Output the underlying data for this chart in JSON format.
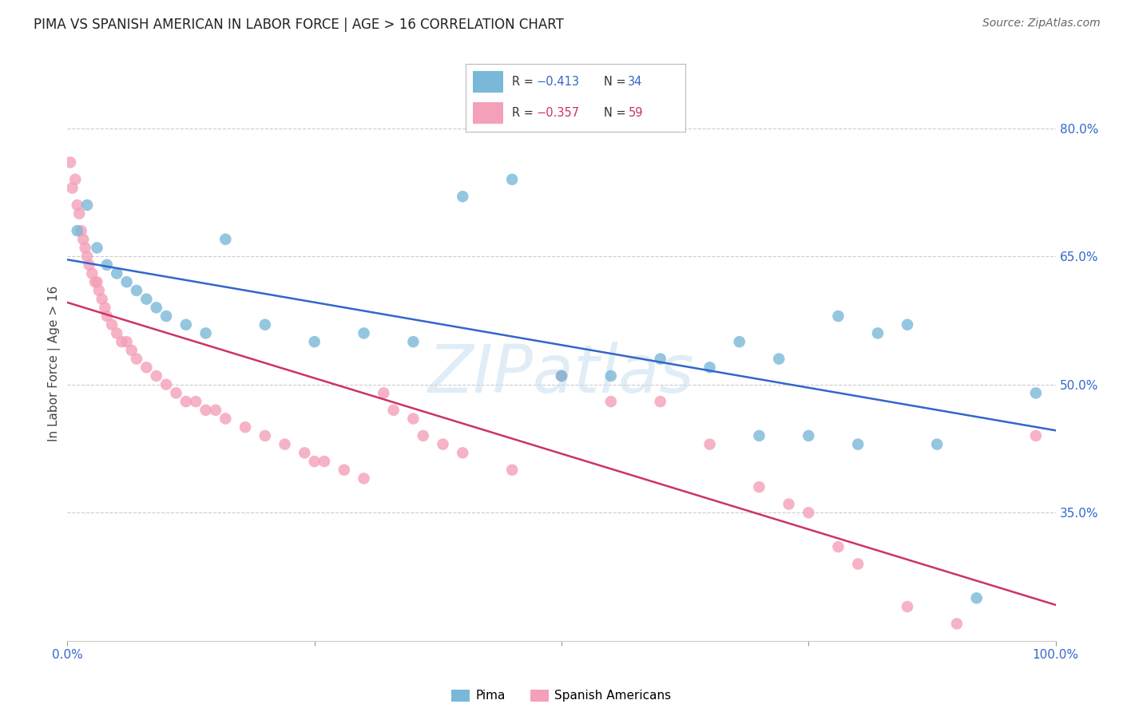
{
  "title": "PIMA VS SPANISH AMERICAN IN LABOR FORCE | AGE > 16 CORRELATION CHART",
  "source": "Source: ZipAtlas.com",
  "ylabel": "In Labor Force | Age > 16",
  "ylabel_right_ticks": [
    35.0,
    50.0,
    65.0,
    80.0
  ],
  "legend_label_blue": "Pima",
  "legend_label_pink": "Spanish Americans",
  "blue_color": "#7ab8d9",
  "pink_color": "#f4a0b8",
  "blue_line_color": "#3366cc",
  "pink_line_color": "#cc3366",
  "blue_r_color": "#3366cc",
  "pink_r_color": "#cc3366",
  "background_color": "#ffffff",
  "grid_color": "#cccccc",
  "watermark": "ZIPatlas",
  "xlim": [
    0.0,
    100.0
  ],
  "ylim": [
    20.0,
    85.0
  ],
  "blue_r_val": "-0.413",
  "blue_n_val": "34",
  "pink_r_val": "-0.357",
  "pink_n_val": "59",
  "blue_x": [
    1.0,
    2.0,
    3.0,
    4.0,
    5.0,
    6.0,
    7.0,
    8.0,
    9.0,
    10.0,
    12.0,
    14.0,
    16.0,
    20.0,
    25.0,
    30.0,
    35.0,
    40.0,
    45.0,
    50.0,
    55.0,
    60.0,
    65.0,
    68.0,
    70.0,
    72.0,
    75.0,
    78.0,
    80.0,
    82.0,
    85.0,
    88.0,
    92.0,
    98.0
  ],
  "blue_y": [
    68.0,
    71.0,
    66.0,
    64.0,
    63.0,
    62.0,
    61.0,
    60.0,
    59.0,
    58.0,
    57.0,
    56.0,
    67.0,
    57.0,
    55.0,
    56.0,
    55.0,
    72.0,
    74.0,
    51.0,
    51.0,
    53.0,
    52.0,
    55.0,
    44.0,
    53.0,
    44.0,
    58.0,
    43.0,
    56.0,
    57.0,
    43.0,
    25.0,
    49.0
  ],
  "pink_x": [
    0.3,
    0.5,
    0.8,
    1.0,
    1.2,
    1.4,
    1.6,
    1.8,
    2.0,
    2.2,
    2.5,
    2.8,
    3.0,
    3.2,
    3.5,
    3.8,
    4.0,
    4.5,
    5.0,
    5.5,
    6.0,
    6.5,
    7.0,
    8.0,
    9.0,
    10.0,
    11.0,
    12.0,
    13.0,
    14.0,
    15.0,
    16.0,
    18.0,
    20.0,
    22.0,
    24.0,
    25.0,
    26.0,
    28.0,
    30.0,
    32.0,
    33.0,
    35.0,
    36.0,
    38.0,
    40.0,
    45.0,
    50.0,
    55.0,
    60.0,
    65.0,
    70.0,
    73.0,
    75.0,
    78.0,
    80.0,
    85.0,
    90.0,
    98.0
  ],
  "pink_y": [
    76.0,
    73.0,
    74.0,
    71.0,
    70.0,
    68.0,
    67.0,
    66.0,
    65.0,
    64.0,
    63.0,
    62.0,
    62.0,
    61.0,
    60.0,
    59.0,
    58.0,
    57.0,
    56.0,
    55.0,
    55.0,
    54.0,
    53.0,
    52.0,
    51.0,
    50.0,
    49.0,
    48.0,
    48.0,
    47.0,
    47.0,
    46.0,
    45.0,
    44.0,
    43.0,
    42.0,
    41.0,
    41.0,
    40.0,
    39.0,
    49.0,
    47.0,
    46.0,
    44.0,
    43.0,
    42.0,
    40.0,
    51.0,
    48.0,
    48.0,
    43.0,
    38.0,
    36.0,
    35.0,
    31.0,
    29.0,
    24.0,
    22.0,
    44.0
  ]
}
